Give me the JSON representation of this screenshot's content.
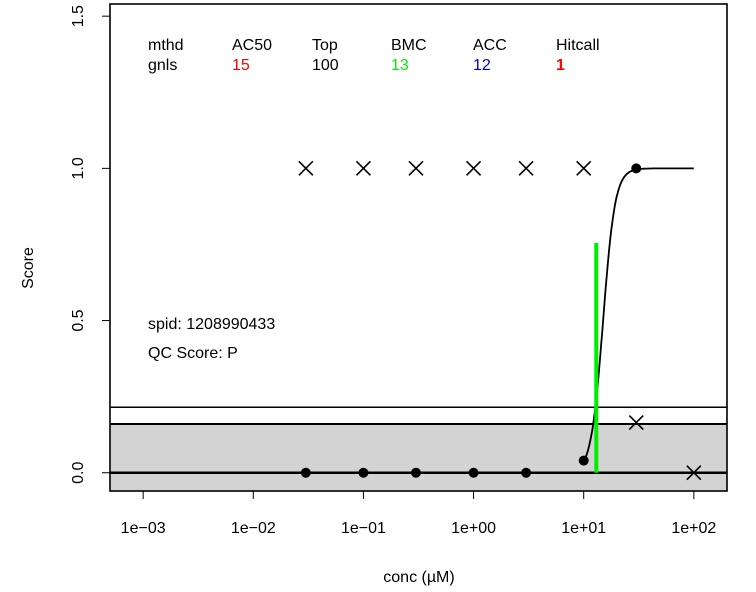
{
  "chart_data": {
    "type": "scatter",
    "xlabel": "conc (µM)",
    "ylabel": "Score",
    "x_scale": "log",
    "xlim": [
      0.0005,
      200
    ],
    "ylim": [
      -0.06,
      1.54
    ],
    "x_ticks": [
      {
        "value": 0.001,
        "label": "1e−03"
      },
      {
        "value": 0.01,
        "label": "1e−02"
      },
      {
        "value": 0.1,
        "label": "1e−01"
      },
      {
        "value": 1,
        "label": "1e+00"
      },
      {
        "value": 10,
        "label": "1e+01"
      },
      {
        "value": 100,
        "label": "1e+02"
      }
    ],
    "y_ticks": [
      {
        "value": 0,
        "label": "0.0"
      },
      {
        "value": 0.5,
        "label": "0.5"
      },
      {
        "value": 1,
        "label": "1.0"
      },
      {
        "value": 1.5,
        "label": "1.5"
      }
    ],
    "table": {
      "headers": [
        "mthd",
        "AC50",
        "Top",
        "BMC",
        "ACC",
        "Hitcall"
      ],
      "row": [
        "gnls",
        "15",
        "100",
        "13",
        "12",
        "1"
      ],
      "colors": [
        "#000000",
        "#ff0000",
        "#000000",
        "#00ee00",
        "#0000cc",
        "#ff0000"
      ]
    },
    "spid_label": "spid: 1208990433",
    "qc_label": "QC Score: P",
    "points_filled": [
      {
        "x": 0.03,
        "y": 0
      },
      {
        "x": 0.1,
        "y": 0
      },
      {
        "x": 0.3,
        "y": 0
      },
      {
        "x": 1,
        "y": 0
      },
      {
        "x": 3,
        "y": 0
      },
      {
        "x": 10,
        "y": 0.04
      },
      {
        "x": 30,
        "y": 1
      }
    ],
    "points_cross": [
      {
        "x": 0.03,
        "y": 1
      },
      {
        "x": 0.1,
        "y": 1
      },
      {
        "x": 0.3,
        "y": 1
      },
      {
        "x": 1,
        "y": 1
      },
      {
        "x": 3,
        "y": 1
      },
      {
        "x": 10,
        "y": 1
      },
      {
        "x": 30,
        "y": 0.165
      },
      {
        "x": 100,
        "y": 0
      }
    ],
    "fit_curve": {
      "model": "hill",
      "top": 1,
      "ac50": 15,
      "slope": 8,
      "x_range": [
        10,
        100
      ],
      "color": "#000000"
    },
    "bmc_line": {
      "x": 13,
      "y_from": 0,
      "y_to": 0.755,
      "color": "#00ee00"
    },
    "cutoff_band": {
      "y_from": -0.06,
      "y_to": 0.16,
      "color": "#d3d3d3"
    },
    "hlines": [
      0,
      0.16,
      0.215
    ]
  }
}
